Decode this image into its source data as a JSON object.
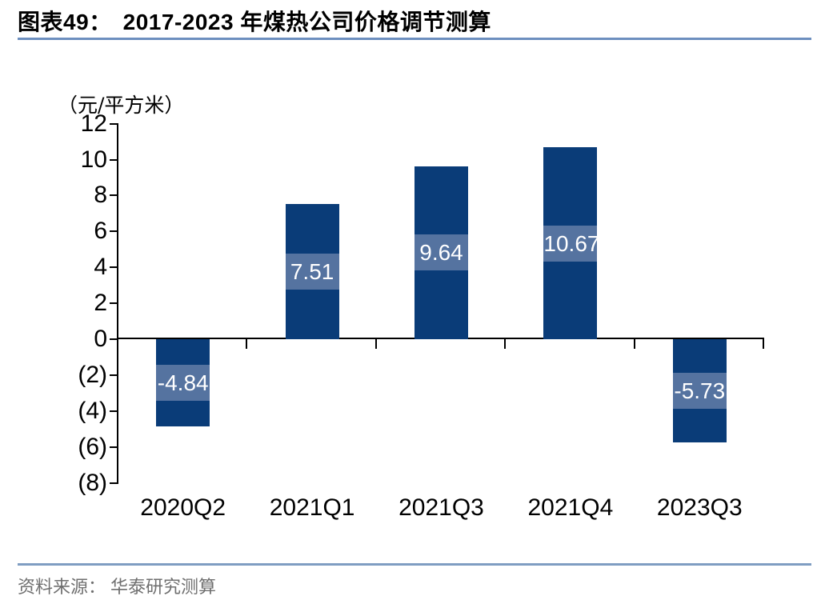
{
  "header": {
    "figure_label": "图表49：",
    "title": "2017-2023 年煤热公司价格调节测算"
  },
  "footer": {
    "source_label": "资料来源：",
    "source_text": "华泰研究测算"
  },
  "chart_data": {
    "type": "bar",
    "title": "2017-2023 年煤热公司价格调节测算",
    "unit_label": "（元/平方米）",
    "categories": [
      "2020Q2",
      "2021Q1",
      "2021Q3",
      "2021Q4",
      "2023Q3"
    ],
    "values": [
      -4.84,
      7.51,
      9.64,
      10.67,
      -5.73
    ],
    "data_labels": [
      "-4.84",
      "7.51",
      "9.64",
      "10.67",
      "-5.73"
    ],
    "ylim": [
      -8,
      12
    ],
    "y_tick_step": 2,
    "y_tick_labels": [
      "12",
      "10",
      "8",
      "6",
      "4",
      "2",
      "0",
      "(2)",
      "(4)",
      "(6)",
      "(8)"
    ],
    "negative_label_format": "parentheses",
    "grid": false,
    "legend": false,
    "colors": {
      "bar": "#0a3c78",
      "label_band": "#5573a0",
      "label_text": "#ffffff",
      "axis": "#000000",
      "title_rule": "#6d8fbf",
      "footer_rule": "#7f9dc2",
      "footer_text": "#6f6f6f"
    }
  }
}
